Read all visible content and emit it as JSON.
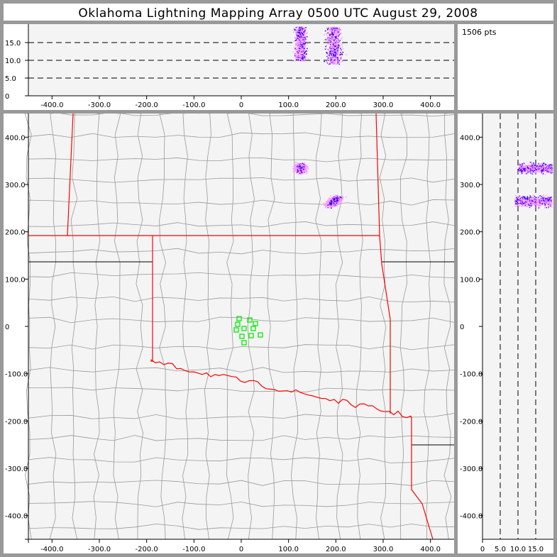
{
  "title": "Oklahoma Lightning Mapping Array   0500 UTC  August 29, 2008",
  "info": {
    "point_count": "1506 pts"
  },
  "colors": {
    "frame": "#999999",
    "plot_bg": "#f4f4f4",
    "state_border": "#ff0000",
    "county_line": "#999999",
    "station": "#00ee00",
    "source_low": "#ff99ff",
    "source_high": "#3300ff"
  },
  "chart_data": [
    {
      "type": "scatter",
      "name_panel": "east-west altitude projection",
      "xlim": [
        -450,
        450
      ],
      "ylim": [
        0,
        19.5
      ],
      "xticks": [
        "-400.0",
        "-300.0",
        "-200.0",
        "-100.0",
        "0",
        "100.0",
        "200.0",
        "300.0",
        "400.0"
      ],
      "xtick_values": [
        -400,
        -300,
        -200,
        -100,
        0,
        100,
        200,
        300,
        400
      ],
      "yticks": [
        "0",
        "5.0",
        "10.0",
        "15.0"
      ],
      "ytick_values": [
        0,
        5,
        10,
        15
      ],
      "dashed_gridlines": [
        5,
        10,
        15
      ]
    },
    {
      "type": "scatter",
      "name_panel": "plan view map",
      "xlim": [
        -450,
        450
      ],
      "ylim": [
        -450,
        450
      ],
      "xticks": [
        "-400.0",
        "-300.0",
        "-200.0",
        "-100.0",
        "0",
        "100.0",
        "200.0",
        "300.0",
        "400.0"
      ],
      "xtick_values": [
        -400,
        -300,
        -200,
        -100,
        0,
        100,
        200,
        300,
        400
      ],
      "yticks": [
        "400.0",
        "300.0",
        "200.0",
        "100.0",
        "0",
        "-100.0",
        "-200.0",
        "-300.0",
        "-400.0"
      ],
      "ytick_values": [
        400,
        300,
        200,
        100,
        0,
        -100,
        -200,
        -300,
        -400
      ],
      "stations": [
        [
          -4.5,
          16.5
        ],
        [
          -7.5,
          4.5
        ],
        [
          -10.5,
          -7.5
        ],
        [
          6,
          -4.5
        ],
        [
          18,
          13.5
        ],
        [
          30,
          6
        ],
        [
          25.5,
          -4.5
        ],
        [
          1.5,
          -21
        ],
        [
          21,
          -19.5
        ],
        [
          40.5,
          -18
        ],
        [
          6,
          -34.5
        ]
      ],
      "source_clusters": [
        {
          "x": 125,
          "y": 335,
          "z_range": [
            10,
            19.5
          ]
        },
        {
          "x": 195,
          "y": 265,
          "z_range": [
            9,
            19.5
          ]
        }
      ]
    },
    {
      "type": "scatter",
      "name_panel": "north-south altitude projection",
      "xlim": [
        0,
        19.5
      ],
      "ylim": [
        -450,
        450
      ],
      "xticks": [
        "0",
        "5.0",
        "10.0",
        "15.0"
      ],
      "xtick_values": [
        0,
        5,
        10,
        15
      ],
      "yticks": [
        "400.0",
        "300.0",
        "200.0",
        "100.0",
        "0",
        "-100.0",
        "-200.0",
        "-300.0",
        "-400.0"
      ],
      "ytick_values": [
        400,
        300,
        200,
        100,
        0,
        -100,
        -200,
        -300,
        -400
      ],
      "dashed_gridlines": [
        5,
        10,
        15
      ]
    }
  ]
}
